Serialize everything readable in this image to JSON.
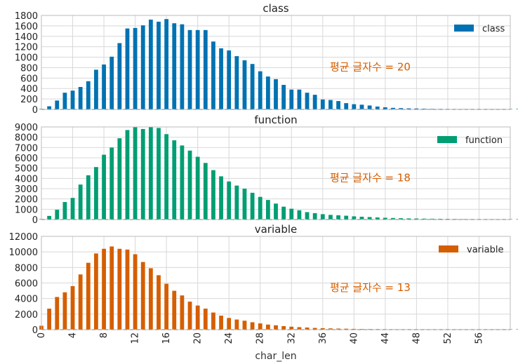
{
  "chart_data": [
    {
      "type": "bar",
      "title": "class",
      "legend": "class",
      "legend_position": "top-right",
      "color": "#0072B2",
      "annotation": "평균 글자수 = 20",
      "annotation_color": "#D55E00",
      "ylim": [
        0,
        1800
      ],
      "yticks": [
        0,
        200,
        400,
        600,
        800,
        1000,
        1200,
        1400,
        1600,
        1800
      ],
      "grid": true,
      "values": [
        10,
        60,
        170,
        320,
        360,
        430,
        540,
        760,
        860,
        1010,
        1270,
        1550,
        1560,
        1610,
        1720,
        1680,
        1730,
        1650,
        1630,
        1520,
        1520,
        1520,
        1300,
        1170,
        1130,
        1020,
        940,
        870,
        730,
        630,
        580,
        470,
        380,
        380,
        320,
        280,
        190,
        180,
        160,
        120,
        100,
        90,
        75,
        55,
        40,
        30,
        25,
        20,
        18,
        15,
        12,
        10,
        8,
        7,
        6,
        5,
        4,
        4,
        3,
        3,
        2,
        2,
        2,
        1,
        1,
        1,
        1,
        1,
        1,
        1,
        1
      ]
    },
    {
      "type": "bar",
      "title": "function",
      "legend": "function",
      "legend_position": "top-right",
      "color": "#009E73",
      "annotation": "평균 글자수 = 18",
      "annotation_color": "#D55E00",
      "ylim": [
        0,
        9000
      ],
      "yticks": [
        0,
        1000,
        2000,
        3000,
        4000,
        5000,
        6000,
        7000,
        8000,
        9000
      ],
      "grid": true,
      "values": [
        50,
        350,
        950,
        1700,
        2100,
        3400,
        4300,
        5100,
        6300,
        7000,
        7900,
        8700,
        9000,
        8800,
        9000,
        8900,
        8300,
        7700,
        7200,
        6700,
        6100,
        5500,
        4800,
        4200,
        3700,
        3300,
        3000,
        2600,
        2200,
        1900,
        1550,
        1250,
        1050,
        900,
        720,
        620,
        520,
        450,
        410,
        370,
        310,
        270,
        240,
        200,
        170,
        150,
        130,
        110,
        100,
        90,
        80,
        70,
        60,
        55,
        50,
        45,
        40,
        35,
        30,
        28,
        25,
        22,
        20,
        18,
        16,
        14,
        12,
        10,
        9,
        8,
        7
      ]
    },
    {
      "type": "bar",
      "title": "variable",
      "legend": "variable",
      "legend_position": "top-right",
      "color": "#D55E00",
      "annotation": "평균 글자수 = 13",
      "annotation_color": "#D55E00",
      "ylim": [
        0,
        12000
      ],
      "yticks": [
        0,
        2000,
        4000,
        6000,
        8000,
        10000,
        12000
      ],
      "grid": true,
      "values": [
        500,
        2700,
        4200,
        4800,
        5600,
        7100,
        8600,
        9800,
        10400,
        10700,
        10400,
        10300,
        9700,
        8700,
        7900,
        7000,
        5900,
        5000,
        4400,
        3600,
        3100,
        2700,
        2200,
        1800,
        1500,
        1300,
        1150,
        950,
        800,
        650,
        560,
        450,
        380,
        320,
        270,
        220,
        190,
        160,
        140,
        120,
        100,
        90,
        80,
        70,
        60,
        55,
        50,
        45,
        40,
        35,
        30,
        28,
        25,
        22,
        20,
        18,
        16,
        14,
        12,
        10,
        9,
        8,
        7,
        6,
        5,
        5,
        4,
        4,
        3,
        3,
        2
      ]
    }
  ],
  "x_axis": {
    "label": "char_len",
    "tick_labels": [
      "0",
      "4",
      "8",
      "12",
      "16",
      "20",
      "24",
      "28",
      "32",
      "36",
      "40",
      "44",
      "48",
      "52",
      "56"
    ],
    "tick_values": [
      0,
      4,
      8,
      12,
      16,
      20,
      24,
      28,
      32,
      36,
      40,
      44,
      48,
      52,
      56
    ],
    "xlim": [
      0,
      60
    ]
  }
}
